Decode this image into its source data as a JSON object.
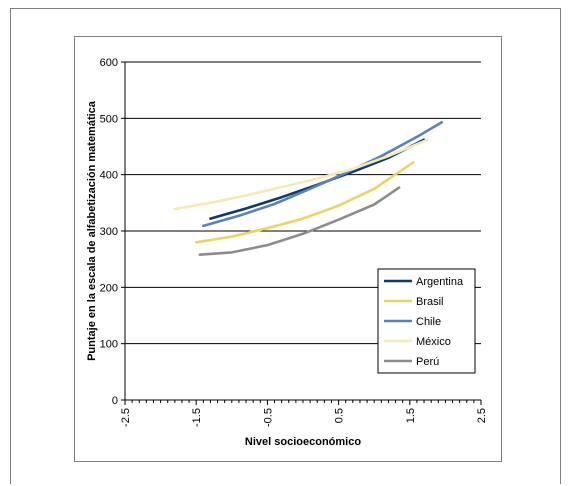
{
  "chart_data": {
    "type": "line",
    "title": "",
    "xlabel": "Nivel socioeconómico",
    "ylabel": "Puntaje en la escala de alfabetización matemática",
    "xlim": [
      -2.5,
      2.5
    ],
    "ylim": [
      0,
      600
    ],
    "xticks": [
      "-2.5",
      "-1.5",
      "-0.5",
      "0.5",
      "1.5",
      "2.5"
    ],
    "xtick_values": [
      -2.5,
      -1.5,
      -0.5,
      0.5,
      1.5,
      2.5
    ],
    "yticks": [
      "0",
      "100",
      "200",
      "300",
      "400",
      "500",
      "600"
    ],
    "ytick_values": [
      0,
      100,
      200,
      300,
      400,
      500,
      600
    ],
    "grid": "horizontal",
    "legend_position": "bottom-right",
    "series": [
      {
        "name": "Argentina",
        "color": "#0d3b66",
        "x": [
          -1.3,
          -0.8,
          -0.3,
          0.2,
          0.7,
          1.2,
          1.7
        ],
        "y": [
          322,
          340,
          360,
          382,
          405,
          430,
          462
        ]
      },
      {
        "name": "Brasil",
        "color": "#e8d46a",
        "x": [
          -1.5,
          -1.0,
          -0.5,
          0.0,
          0.5,
          1.0,
          1.55
        ],
        "y": [
          280,
          290,
          305,
          322,
          345,
          375,
          422
        ]
      },
      {
        "name": "Chile",
        "color": "#5b82b5",
        "x": [
          -1.4,
          -0.9,
          -0.4,
          0.1,
          0.6,
          1.1,
          1.6,
          1.95
        ],
        "y": [
          309,
          327,
          348,
          375,
          403,
          433,
          467,
          493
        ]
      },
      {
        "name": "México",
        "color": "#f6e9b8",
        "x": [
          -1.8,
          -1.3,
          -0.8,
          -0.3,
          0.2,
          0.7,
          1.2,
          1.75
        ],
        "y": [
          339,
          350,
          363,
          378,
          393,
          410,
          433,
          462
        ]
      },
      {
        "name": "Perú",
        "color": "#8c8c8c",
        "x": [
          -1.45,
          -1.0,
          -0.5,
          0.0,
          0.5,
          1.0,
          1.35
        ],
        "y": [
          258,
          262,
          275,
          295,
          320,
          347,
          377
        ]
      }
    ]
  }
}
